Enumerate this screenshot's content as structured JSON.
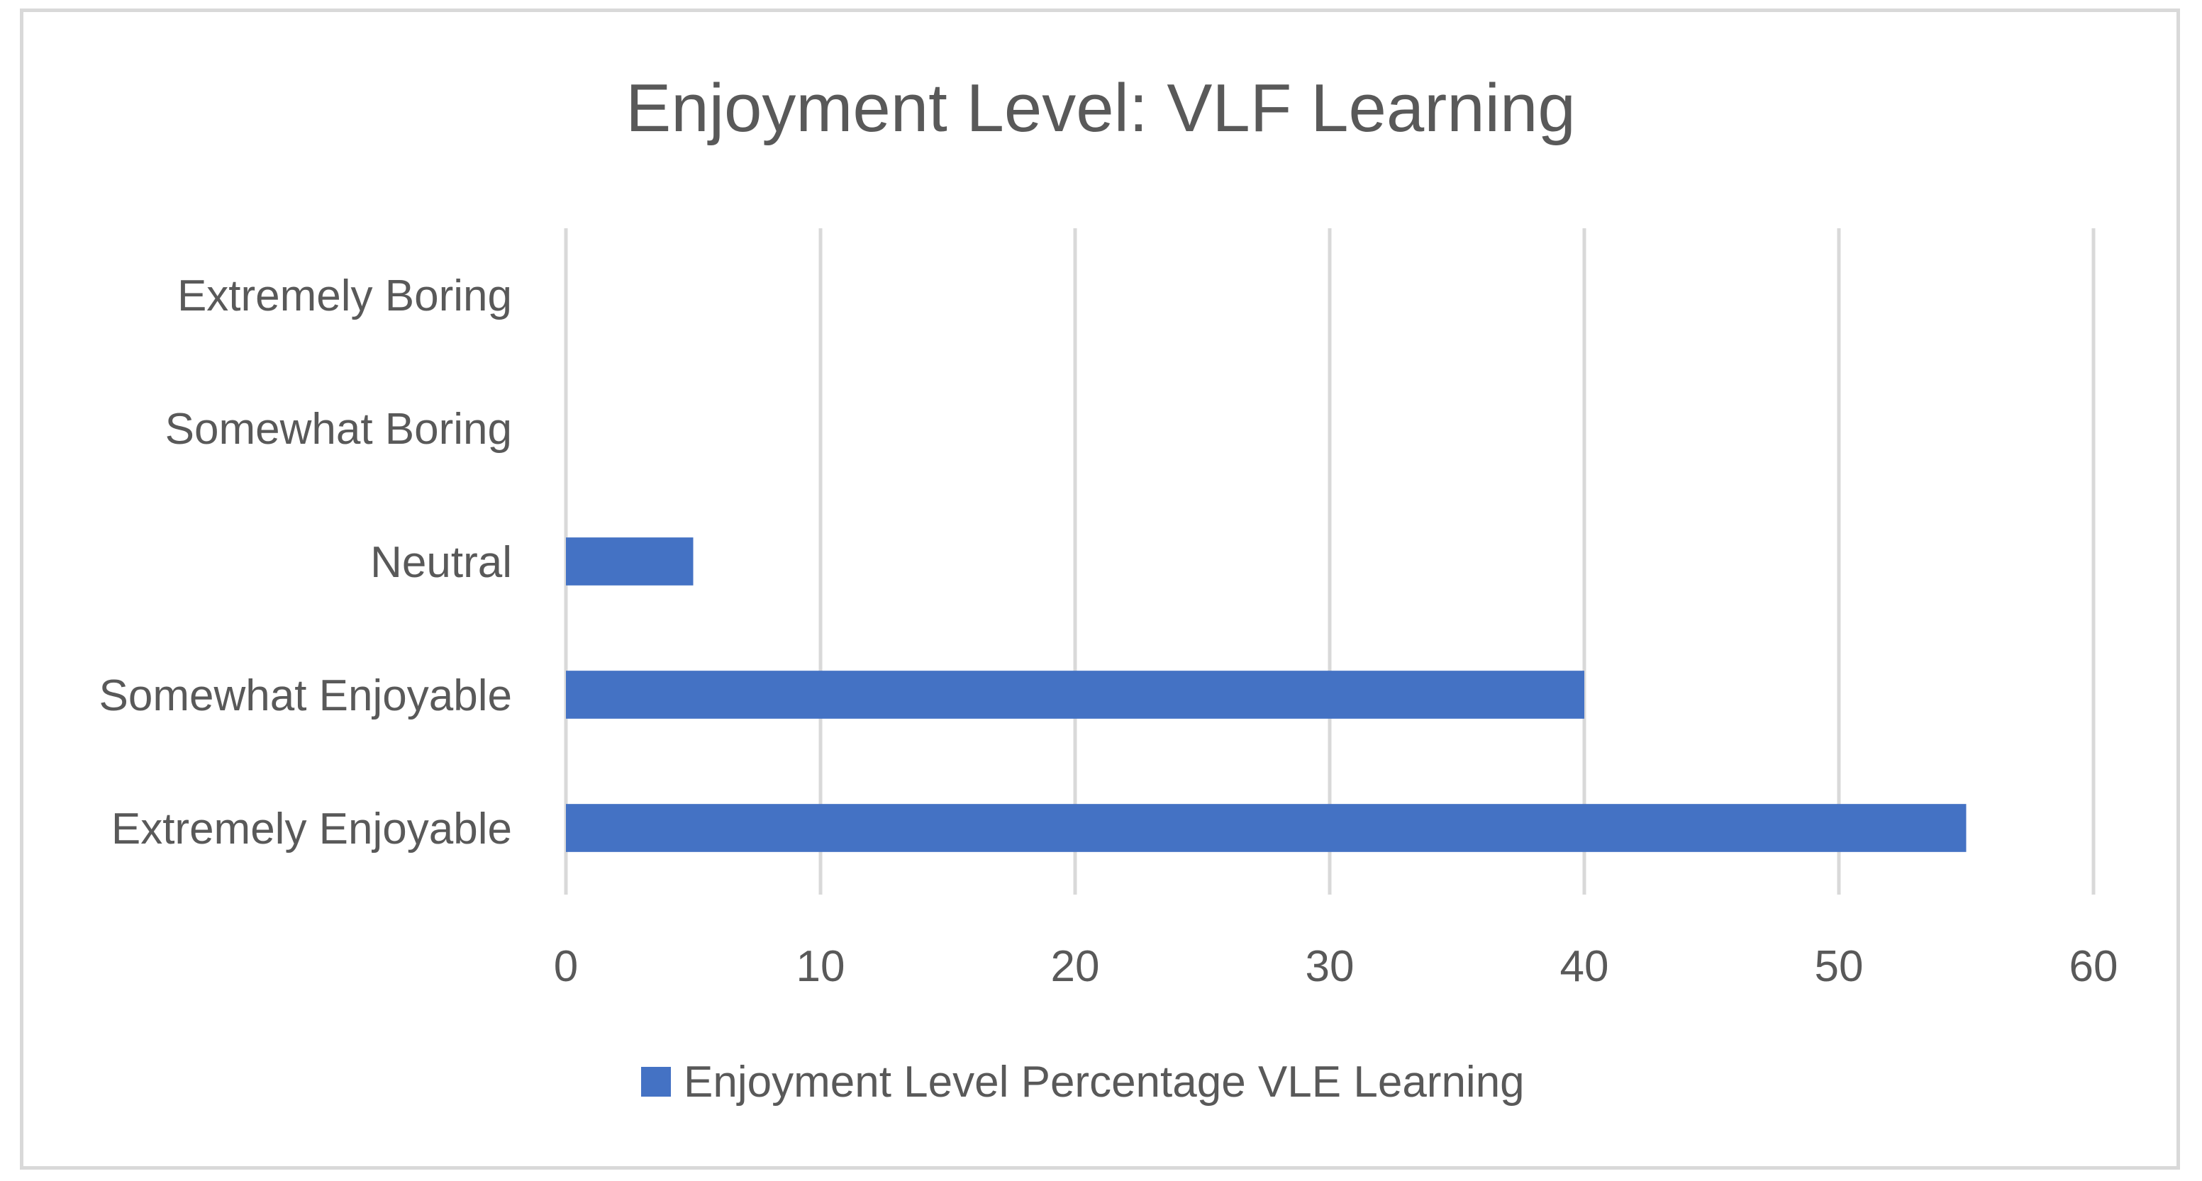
{
  "chart_data": {
    "type": "bar",
    "orientation": "horizontal",
    "title": "Enjoyment Level: VLF Learning",
    "categories": [
      "Extremely Boring",
      "Somewhat Boring",
      "Neutral",
      "Somewhat Enjoyable",
      "Extremely Enjoyable"
    ],
    "series": [
      {
        "name": "Enjoyment Level Percentage VLE Learning",
        "values": [
          0,
          0,
          5,
          40,
          55
        ],
        "color": "#4472c4"
      }
    ],
    "xlim": [
      0,
      60
    ],
    "xticks": [
      0,
      10,
      20,
      30,
      40,
      50,
      60
    ],
    "xlabel": "",
    "ylabel": "",
    "grid": "vertical",
    "legend_position": "bottom"
  }
}
